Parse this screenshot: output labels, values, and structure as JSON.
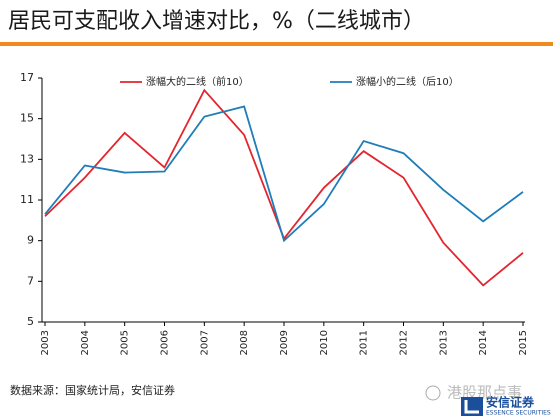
{
  "chart_data": {
    "type": "line",
    "title": "居民可支配收入增速对比，%（二线城市）",
    "categories": [
      "2003",
      "2004",
      "2005",
      "2006",
      "2007",
      "2008",
      "2009",
      "2010",
      "2011",
      "2012",
      "2013",
      "2014",
      "2015"
    ],
    "series": [
      {
        "name": "涨幅大的二线（前10）",
        "color": "#e3262e",
        "values": [
          10.2,
          12.1,
          14.3,
          12.6,
          16.4,
          14.2,
          9.1,
          11.6,
          13.4,
          12.1,
          8.9,
          6.8,
          8.4
        ]
      },
      {
        "name": "涨幅小的二线（后10）",
        "color": "#1f7db8",
        "values": [
          10.3,
          12.7,
          12.35,
          12.4,
          15.1,
          15.6,
          9.0,
          10.8,
          13.9,
          13.3,
          11.5,
          9.95,
          11.4
        ]
      }
    ],
    "ylim": [
      5,
      17
    ],
    "yticks": [
      5,
      7,
      9,
      11,
      13,
      15,
      17
    ],
    "grid": false,
    "legend": "top",
    "source": "数据来源：国家统计局，安信证券",
    "watermark": "港股那点事",
    "logo": {
      "name": "安信证券",
      "subtitle": "ESSENCE SECURITIES"
    }
  }
}
